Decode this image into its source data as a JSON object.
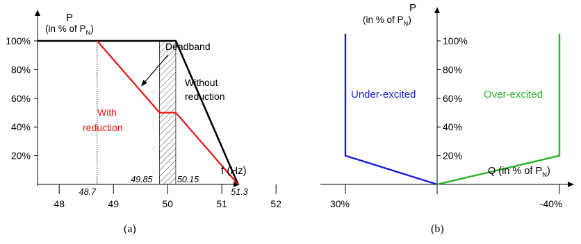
{
  "chart_data": [
    {
      "type": "line",
      "caption": "(a)",
      "ylabel": "P",
      "ylabel_sub": [
        "(in % of P",
        "N",
        ")"
      ],
      "xlabel": "f (Hz)",
      "xlim": [
        47.6,
        52.7
      ],
      "ylim": [
        0,
        110
      ],
      "x_ticks": [
        "48",
        "49",
        "50",
        "51",
        "52"
      ],
      "y_ticks": [
        "20%",
        "40%",
        "60%",
        "80%",
        "100%"
      ],
      "annotated_x": [
        "48.7",
        "49.85",
        "50.15",
        "51.3"
      ],
      "deadband": {
        "label": "Deadband",
        "from": 49.85,
        "to": 50.15
      },
      "series": [
        {
          "name": "Without reduction",
          "color": "#000000",
          "points": [
            [
              47.6,
              100
            ],
            [
              50.15,
              100
            ],
            [
              51.3,
              0
            ]
          ]
        },
        {
          "name": "With reduction",
          "color": "#ee1111",
          "points": [
            [
              48.7,
              100
            ],
            [
              49.85,
              50
            ],
            [
              50.15,
              50
            ],
            [
              51.3,
              0
            ]
          ]
        }
      ]
    },
    {
      "type": "line",
      "caption": "(b)",
      "ylabel": "P",
      "ylabel_sub": [
        "(in % of P",
        "N",
        ")"
      ],
      "xlabel_sub": [
        "Q (in % of P",
        "N",
        ")"
      ],
      "y_ticks": [
        "20%",
        "40%",
        "60%",
        "80%",
        "100%"
      ],
      "x_ticks": [
        "30%",
        "-40%"
      ],
      "series": [
        {
          "name": "Under-excited",
          "color": "#1a1adc",
          "points": [
            [
              30,
              105
            ],
            [
              30,
              20
            ],
            [
              0,
              0
            ]
          ]
        },
        {
          "name": "Over-excited",
          "color": "#28b428",
          "points": [
            [
              0,
              0
            ],
            [
              -40,
              20
            ],
            [
              -40,
              105
            ]
          ]
        }
      ]
    }
  ]
}
